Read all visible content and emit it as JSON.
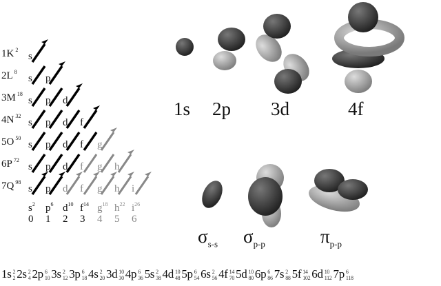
{
  "shells": [
    {
      "label": "1K",
      "max": "2"
    },
    {
      "label": "2L",
      "max": "8"
    },
    {
      "label": "3M",
      "max": "18"
    },
    {
      "label": "4N",
      "max": "32"
    },
    {
      "label": "5O",
      "max": "50"
    },
    {
      "label": "6P",
      "max": "72"
    },
    {
      "label": "7Q",
      "max": "98"
    }
  ],
  "subshell_rows": [
    [
      "s"
    ],
    [
      "s",
      "p"
    ],
    [
      "s",
      "p",
      "d"
    ],
    [
      "s",
      "p",
      "d",
      "f"
    ],
    [
      "s",
      "p",
      "d",
      "f",
      "g"
    ],
    [
      "s",
      "p",
      "d",
      "f",
      "g",
      "h"
    ],
    [
      "s",
      "p",
      "d",
      "f",
      "g",
      "h",
      "i"
    ]
  ],
  "unfilled": {
    "4": [
      4
    ],
    "5": [
      3,
      4,
      5
    ],
    "6": [
      2,
      3,
      4,
      5,
      6
    ]
  },
  "l_columns": [
    {
      "letter": "s",
      "max": "2",
      "l": "0"
    },
    {
      "letter": "p",
      "max": "6",
      "l": "1"
    },
    {
      "letter": "d",
      "max": "10",
      "l": "2"
    },
    {
      "letter": "f",
      "max": "14",
      "l": "3"
    },
    {
      "letter": "g",
      "max": "18",
      "l": "4"
    },
    {
      "letter": "h",
      "max": "22",
      "l": "5"
    },
    {
      "letter": "i",
      "max": "26",
      "l": "6"
    }
  ],
  "orbital_labels": [
    "1s",
    "2p",
    "3d",
    "4f"
  ],
  "molecular_labels": [
    {
      "sym": "σ",
      "sub": "s-s"
    },
    {
      "sym": "σ",
      "sub": "p-p"
    },
    {
      "sym": "π",
      "sub": "p-p"
    }
  ],
  "sequence": [
    {
      "o": "1s",
      "e": "2",
      "c": "2"
    },
    {
      "o": "2s",
      "e": "2",
      "c": "4"
    },
    {
      "o": "2p",
      "e": "6",
      "c": "10"
    },
    {
      "o": "3s",
      "e": "2",
      "c": "12"
    },
    {
      "o": "3p",
      "e": "6",
      "c": "18"
    },
    {
      "o": "4s",
      "e": "2",
      "c": "20"
    },
    {
      "o": "3d",
      "e": "10",
      "c": "30"
    },
    {
      "o": "4p",
      "e": "6",
      "c": "36"
    },
    {
      "o": "5s",
      "e": "2",
      "c": "38"
    },
    {
      "o": "4d",
      "e": "10",
      "c": "48"
    },
    {
      "o": "5p",
      "e": "6",
      "c": "54"
    },
    {
      "o": "6s",
      "e": "2",
      "c": "56"
    },
    {
      "o": "4f",
      "e": "14",
      "c": "70"
    },
    {
      "o": "5d",
      "e": "10",
      "c": "80"
    },
    {
      "o": "6p",
      "e": "6",
      "c": "86"
    },
    {
      "o": "7s",
      "e": "2",
      "c": "88"
    },
    {
      "o": "5f",
      "e": "14",
      "c": "102"
    },
    {
      "o": "6d",
      "e": "10",
      "c": "112"
    },
    {
      "o": "7p",
      "e": "6",
      "c": "118"
    }
  ],
  "colors": {
    "filled": "#000000",
    "unfilled": "#888888",
    "lobe_dark": "#3a3a3a",
    "lobe_light": "#b0b0b0"
  }
}
